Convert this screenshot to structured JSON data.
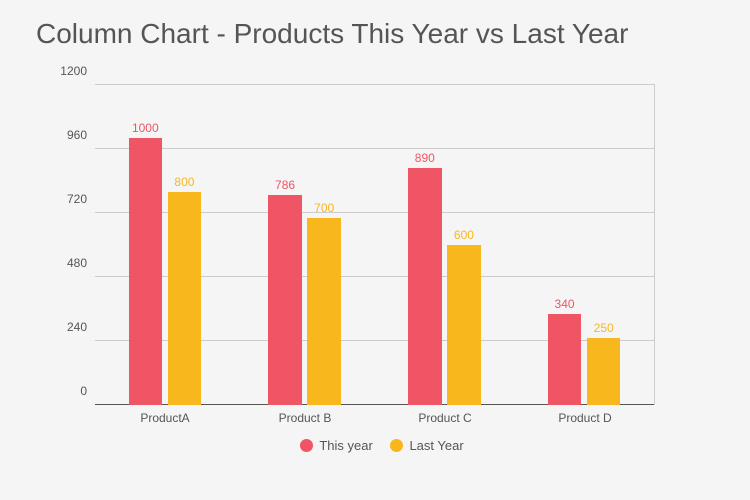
{
  "title": "Column Chart - Products This Year vs Last Year",
  "chart": {
    "type": "bar",
    "background_color": "#f5f5f5",
    "grid_color": "#cccccc",
    "axis_color": "#555555",
    "text_color": "#555555",
    "title_fontsize": 28,
    "tick_fontsize": 12,
    "label_fontsize": 12,
    "ylim": [
      0,
      1200
    ],
    "ytick_step": 240,
    "yticks": [
      "0",
      "240",
      "480",
      "720",
      "960",
      "1200"
    ],
    "categories": [
      "ProductA",
      "Product B",
      "Product C",
      "Product D"
    ],
    "bar_width_pct": 6.0,
    "group_gap_pct": 25.0,
    "series": [
      {
        "name": "This year",
        "color": "#ef5565",
        "values": [
          1000,
          786,
          890,
          340
        ]
      },
      {
        "name": "Last Year",
        "color": "#f7b71d",
        "values": [
          800,
          700,
          600,
          250
        ]
      }
    ],
    "legend": {
      "position": "bottom",
      "marker": "circle"
    }
  }
}
